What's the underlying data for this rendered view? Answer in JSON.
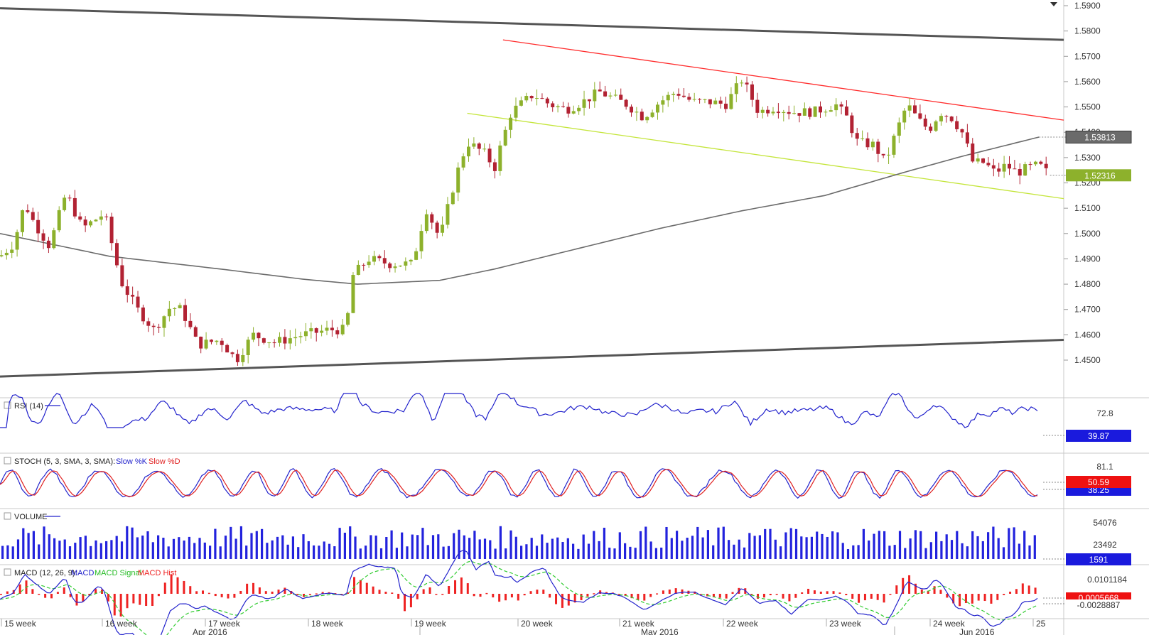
{
  "chart_data": [
    {
      "type": "candlestick",
      "panel": "price",
      "ylim": [
        1.44,
        1.59
      ],
      "y_ticks": [
        "1.5900",
        "1.5800",
        "1.5700",
        "1.5600",
        "1.5500",
        "1.5400",
        "1.5300",
        "1.5200",
        "1.5100",
        "1.5000",
        "1.4900",
        "1.4800",
        "1.4700",
        "1.4600",
        "1.4500"
      ],
      "y_tick_values": [
        1.59,
        1.58,
        1.57,
        1.56,
        1.55,
        1.54,
        1.53,
        1.52,
        1.51,
        1.5,
        1.49,
        1.48,
        1.47,
        1.46,
        1.45
      ],
      "ma_last_label": "1.53813",
      "last_price_label": "1.52316",
      "bar_count": 200,
      "path_anchors": [
        [
          0,
          1.491
        ],
        [
          5,
          1.496
        ],
        [
          9,
          1.512
        ],
        [
          12,
          1.505
        ],
        [
          18,
          1.495
        ],
        [
          24,
          1.516
        ],
        [
          30,
          1.502
        ],
        [
          38,
          1.508
        ],
        [
          44,
          1.481
        ],
        [
          50,
          1.47
        ],
        [
          56,
          1.462
        ],
        [
          62,
          1.471
        ],
        [
          66,
          1.47
        ],
        [
          72,
          1.456
        ],
        [
          80,
          1.458
        ],
        [
          86,
          1.45
        ],
        [
          92,
          1.46
        ],
        [
          100,
          1.457
        ],
        [
          110,
          1.46
        ],
        [
          120,
          1.462
        ],
        [
          126,
          1.462
        ],
        [
          128,
          1.483
        ],
        [
          134,
          1.49
        ],
        [
          142,
          1.488
        ],
        [
          150,
          1.488
        ],
        [
          155,
          1.51
        ],
        [
          160,
          1.498
        ],
        [
          166,
          1.523
        ],
        [
          170,
          1.536
        ],
        [
          176,
          1.532
        ],
        [
          180,
          1.526
        ],
        [
          182,
          1.534
        ],
        [
          186,
          1.548
        ],
        [
          194,
          1.555
        ],
        [
          200,
          1.551
        ],
        [
          206,
          1.549
        ],
        [
          212,
          1.552
        ],
        [
          218,
          1.556
        ],
        [
          224,
          1.553
        ],
        [
          228,
          1.551
        ],
        [
          234,
          1.546
        ],
        [
          240,
          1.552
        ],
        [
          246,
          1.556
        ],
        [
          252,
          1.552
        ],
        [
          258,
          1.552
        ],
        [
          264,
          1.551
        ],
        [
          270,
          1.561
        ],
        [
          276,
          1.548
        ],
        [
          282,
          1.55
        ],
        [
          288,
          1.548
        ],
        [
          296,
          1.548
        ],
        [
          304,
          1.551
        ],
        [
          308,
          1.546
        ],
        [
          312,
          1.536
        ],
        [
          318,
          1.535
        ],
        [
          322,
          1.528
        ],
        [
          326,
          1.54
        ],
        [
          330,
          1.551
        ],
        [
          334,
          1.545
        ],
        [
          338,
          1.541
        ],
        [
          342,
          1.548
        ],
        [
          346,
          1.546
        ],
        [
          350,
          1.54
        ],
        [
          354,
          1.528
        ],
        [
          358,
          1.528
        ],
        [
          362,
          1.524
        ],
        [
          366,
          1.527
        ],
        [
          370,
          1.524
        ],
        [
          374,
          1.526
        ],
        [
          378,
          1.527
        ],
        [
          382,
          1.523
        ]
      ],
      "long_trend_lines": [
        {
          "from": [
            0,
            1.589
          ],
          "to": [
            387,
            1.5765
          ]
        },
        {
          "from": [
            0,
            1.4435
          ],
          "to": [
            387,
            1.458
          ]
        }
      ],
      "red_trend_line": {
        "from": [
          183,
          1.5765
        ],
        "to": [
          387,
          1.5448
        ]
      },
      "green_trend_line": {
        "from": [
          170,
          1.5475
        ],
        "to": [
          387,
          1.5138
        ]
      },
      "ma_200_anchors": [
        [
          0,
          1.5
        ],
        [
          40,
          1.491
        ],
        [
          80,
          1.486
        ],
        [
          110,
          1.482
        ],
        [
          130,
          1.48
        ],
        [
          160,
          1.4815
        ],
        [
          180,
          1.486
        ],
        [
          210,
          1.494
        ],
        [
          240,
          1.502
        ],
        [
          270,
          1.509
        ],
        [
          300,
          1.515
        ],
        [
          330,
          1.5245
        ],
        [
          350,
          1.5305
        ],
        [
          378,
          1.5381
        ]
      ]
    },
    {
      "type": "line",
      "panel": "RSI",
      "label": "RSI (14)",
      "y_tick": "72.8",
      "last_value": "39.87",
      "ylim": [
        20,
        80
      ],
      "line_color": "#2222cc"
    },
    {
      "type": "line",
      "panel": "STOCH",
      "label": "STOCH (5, 3, SMA, 3, SMA):",
      "series_names": [
        "Slow %K",
        "Slow %D"
      ],
      "y_tick": "81.1",
      "last_values": [
        "50.59",
        "38.25"
      ],
      "ylim": [
        0,
        100
      ]
    },
    {
      "type": "bar",
      "panel": "VOLUME",
      "label": "VOLUME",
      "y_ticks": [
        "54076",
        "23492"
      ],
      "last_value": "1591",
      "ylim": [
        0,
        75000
      ]
    },
    {
      "type": "line",
      "panel": "MACD",
      "label": "MACD (12, 26, 9):",
      "series_names": [
        "MACD",
        "MACD Signal",
        "MACD Hist"
      ],
      "y_tick": "0.0101184",
      "last_values": [
        "0.0005668",
        "-0.0028887"
      ]
    }
  ],
  "x_axis": {
    "week_labels": [
      "15 week",
      "16 week",
      "17 week",
      "18 week",
      "19 week",
      "20 week",
      "21 week",
      "22 week",
      "23 week",
      "24 week",
      "25"
    ],
    "month_labels": [
      "Apr 2016",
      "May 2016",
      "Jun 2016"
    ]
  },
  "colors": {
    "candle_up": "#8db12c",
    "candle_down": "#b22233",
    "ma": "#6b6b6b",
    "trend_dark": "#555555",
    "trend_red": "#ff2b2b",
    "trend_green": "#c4e53a",
    "badge_ma": "#6b6b6b",
    "badge_price": "#8db12c",
    "rsi": "#2222cc",
    "stoch_k": "#2222cc",
    "stoch_d": "#e02020",
    "volume": "#2222dd",
    "macd": "#2222cc",
    "macd_signal": "#33cc33",
    "macd_hist": "#ee2222",
    "badge_red": "#ee1111",
    "badge_blue": "#1a1add"
  }
}
